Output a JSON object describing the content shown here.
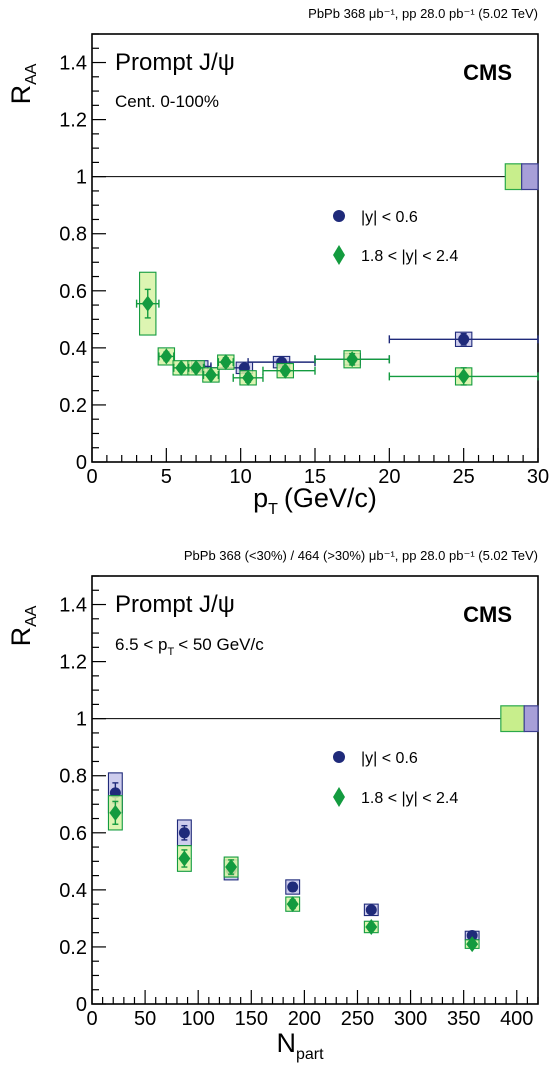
{
  "chart_data": [
    {
      "type": "scatter",
      "header": "PbPb 368 μb⁻¹, pp 28.0 pb⁻¹ (5.02 TeV)",
      "label": "Prompt J/ψ",
      "sublabel": "Cent. 0-100%",
      "experiment": "CMS",
      "xlabel": "p",
      "xlabel_sub": "T",
      "xlabel_unit": "(GeV/c)",
      "ylabel": "R",
      "ylabel_sub": "AA",
      "xlim": [
        0,
        30
      ],
      "ylim": [
        0,
        1.5
      ],
      "xticks": [
        0,
        5,
        10,
        15,
        20,
        25,
        30
      ],
      "yticks": [
        0,
        0.2,
        0.4,
        0.6,
        0.8,
        1,
        1.2,
        1.4
      ],
      "ytick_labels": [
        "0",
        "0.2",
        "0.4",
        "0.6",
        "0.8",
        "1",
        "1.2",
        "1.4"
      ],
      "reference_line": 1,
      "legend_position": "right",
      "global_uncertainty": [
        {
          "color": "#c8ee8c",
          "edge": "#2ba84a",
          "x0": 27.8,
          "x1": 28.9,
          "low": 0.955,
          "high": 1.045
        },
        {
          "color": "#a79fd8",
          "edge": "#3b3e8f",
          "x0": 28.9,
          "x1": 30,
          "low": 0.955,
          "high": 1.045
        }
      ],
      "series": [
        {
          "name": "|y| < 0.6",
          "marker": "circle",
          "color": "#1f2a7a",
          "box_fill": "#c6c4ea",
          "points": [
            {
              "x": 7.25,
              "xlo": 6.5,
              "xhi": 8.0,
              "y": 0.335,
              "err": 0.01,
              "sys": 0.02
            },
            {
              "x": 10.25,
              "xlo": 8.0,
              "xhi": 10.5,
              "y": 0.33,
              "err": 0.01,
              "sys": 0.02
            },
            {
              "x": 12.75,
              "xlo": 10.5,
              "xhi": 15.0,
              "y": 0.35,
              "err": 0.01,
              "sys": 0.02
            },
            {
              "x": 17.5,
              "xlo": 15.0,
              "xhi": 20.0,
              "y": 0.36,
              "err": 0.015,
              "sys": 0.02
            },
            {
              "x": 25.0,
              "xlo": 20.0,
              "xhi": 30.0,
              "y": 0.43,
              "err": 0.02,
              "sys": 0.025
            }
          ]
        },
        {
          "name": "1.8 < |y| < 2.4",
          "marker": "diamond",
          "color": "#139b3f",
          "box_fill": "#d7f3a4",
          "points": [
            {
              "x": 3.75,
              "xlo": 3.0,
              "xhi": 4.5,
              "y": 0.555,
              "err": 0.05,
              "sys": 0.11
            },
            {
              "x": 5.0,
              "xlo": 4.5,
              "xhi": 5.5,
              "y": 0.37,
              "err": 0.015,
              "sys": 0.03
            },
            {
              "x": 6.0,
              "xlo": 5.5,
              "xhi": 6.5,
              "y": 0.33,
              "err": 0.012,
              "sys": 0.025
            },
            {
              "x": 7.0,
              "xlo": 6.5,
              "xhi": 7.5,
              "y": 0.33,
              "err": 0.012,
              "sys": 0.025
            },
            {
              "x": 8.0,
              "xlo": 7.5,
              "xhi": 8.5,
              "y": 0.305,
              "err": 0.012,
              "sys": 0.025
            },
            {
              "x": 9.0,
              "xlo": 8.5,
              "xhi": 9.5,
              "y": 0.35,
              "err": 0.015,
              "sys": 0.025
            },
            {
              "x": 10.5,
              "xlo": 9.5,
              "xhi": 11.5,
              "y": 0.295,
              "err": 0.015,
              "sys": 0.025
            },
            {
              "x": 13.0,
              "xlo": 11.5,
              "xhi": 15.0,
              "y": 0.32,
              "err": 0.015,
              "sys": 0.025
            },
            {
              "x": 17.5,
              "xlo": 15.0,
              "xhi": 20.0,
              "y": 0.36,
              "err": 0.02,
              "sys": 0.03
            },
            {
              "x": 25.0,
              "xlo": 20.0,
              "xhi": 30.0,
              "y": 0.3,
              "err": 0.03,
              "sys": 0.03
            }
          ]
        }
      ]
    },
    {
      "type": "scatter",
      "header": "PbPb 368 (<30%) / 464 (>30%) μb⁻¹, pp 28.0 pb⁻¹ (5.02 TeV)",
      "label": "Prompt J/ψ",
      "sublabel": "6.5 < p",
      "sublabel_sub": "T",
      "sublabel_rest": "< 50 GeV/c",
      "experiment": "CMS",
      "xlabel": "N",
      "xlabel_sub": "part",
      "xlabel_unit": "",
      "ylabel": "R",
      "ylabel_sub": "AA",
      "xlim": [
        0,
        420
      ],
      "ylim": [
        0,
        1.5
      ],
      "xticks": [
        0,
        50,
        100,
        150,
        200,
        250,
        300,
        350,
        400
      ],
      "yticks": [
        0,
        0.2,
        0.4,
        0.6,
        0.8,
        1,
        1.2,
        1.4
      ],
      "ytick_labels": [
        "0",
        "0.2",
        "0.4",
        "0.6",
        "0.8",
        "1",
        "1.2",
        "1.4"
      ],
      "reference_line": 1,
      "legend_position": "right",
      "global_uncertainty": [
        {
          "color": "#c8ee8c",
          "edge": "#2ba84a",
          "x0": 385,
          "x1": 407,
          "low": 0.955,
          "high": 1.045
        },
        {
          "color": "#a79fd8",
          "edge": "#3b3e8f",
          "x0": 407,
          "x1": 420,
          "low": 0.955,
          "high": 1.045
        }
      ],
      "series": [
        {
          "name": "|y| < 0.6",
          "marker": "circle",
          "color": "#1f2a7a",
          "box_fill": "#c6c4ea",
          "points": [
            {
              "x": 22,
              "y": 0.74,
              "err": 0.035,
              "sys": 0.07
            },
            {
              "x": 87,
              "y": 0.6,
              "err": 0.025,
              "sys": 0.045
            },
            {
              "x": 131,
              "y": 0.47,
              "err": 0.02,
              "sys": 0.035
            },
            {
              "x": 189,
              "y": 0.41,
              "err": 0.015,
              "sys": 0.025
            },
            {
              "x": 263,
              "y": 0.33,
              "err": 0.012,
              "sys": 0.02
            },
            {
              "x": 358,
              "y": 0.24,
              "err": 0.01,
              "sys": 0.015
            }
          ]
        },
        {
          "name": "1.8 < |y| < 2.4",
          "marker": "diamond",
          "color": "#139b3f",
          "box_fill": "#d7f3a4",
          "points": [
            {
              "x": 22,
              "y": 0.67,
              "err": 0.04,
              "sys": 0.06
            },
            {
              "x": 87,
              "y": 0.51,
              "err": 0.03,
              "sys": 0.045
            },
            {
              "x": 131,
              "y": 0.48,
              "err": 0.025,
              "sys": 0.035
            },
            {
              "x": 189,
              "y": 0.35,
              "err": 0.015,
              "sys": 0.025
            },
            {
              "x": 263,
              "y": 0.27,
              "err": 0.012,
              "sys": 0.02
            },
            {
              "x": 358,
              "y": 0.21,
              "err": 0.01,
              "sys": 0.015
            }
          ]
        }
      ]
    }
  ]
}
